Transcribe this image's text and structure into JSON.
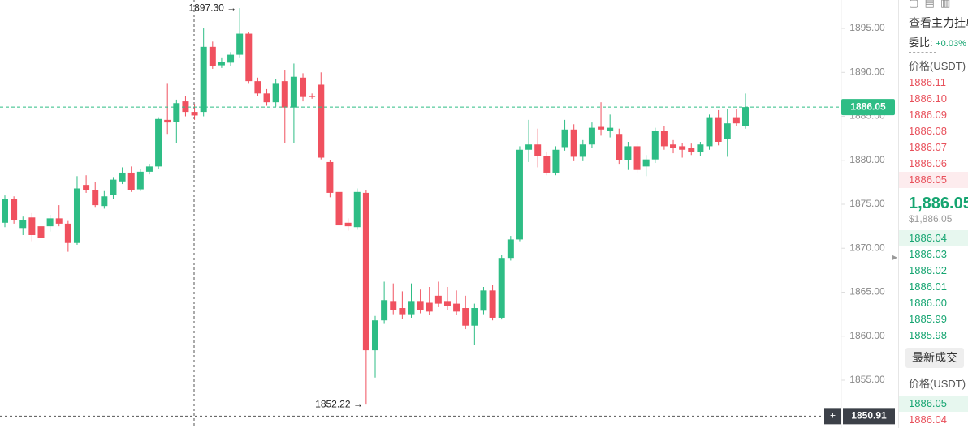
{
  "chart_data": {
    "type": "candlestick",
    "up_color": "#2ebd85",
    "down_color": "#f0515f",
    "ylim": [
      1849.56,
      1898.23
    ],
    "yticks": [
      {
        "value": 1895,
        "label": "1895.00"
      },
      {
        "value": 1890,
        "label": "1890.00"
      },
      {
        "value": 1885,
        "label": "1885.00"
      },
      {
        "value": 1880,
        "label": "1880.00"
      },
      {
        "value": 1875,
        "label": "1875.00"
      },
      {
        "value": 1870,
        "label": "1870.00"
      },
      {
        "value": 1865,
        "label": "1865.00"
      },
      {
        "value": 1860,
        "label": "1860.00"
      },
      {
        "value": 1855,
        "label": "1855.00"
      }
    ],
    "high_marker": {
      "value": 1897.3,
      "label": "1897.30"
    },
    "low_marker": {
      "value": 1852.22,
      "label": "1852.22"
    },
    "last_price": {
      "value": 1886.05,
      "label": "1886.05"
    },
    "crosshair_price": {
      "value": 1850.91,
      "label": "1850.91"
    },
    "candles": [
      [
        1872.9,
        1876.0,
        1872.4,
        1875.6
      ],
      [
        1875.6,
        1875.9,
        1872.8,
        1873.2
      ],
      [
        1872.3,
        1873.6,
        1871.5,
        1873.2
      ],
      [
        1873.5,
        1874.0,
        1870.8,
        1871.5
      ],
      [
        1872.5,
        1872.8,
        1870.9,
        1871.2
      ],
      [
        1872.5,
        1873.8,
        1871.9,
        1873.4
      ],
      [
        1873.4,
        1874.9,
        1872.5,
        1872.8
      ],
      [
        1872.8,
        1873.1,
        1869.6,
        1870.6
      ],
      [
        1870.6,
        1878.2,
        1870.4,
        1876.8
      ],
      [
        1877.2,
        1878.3,
        1876.3,
        1876.6
      ],
      [
        1876.6,
        1877.5,
        1874.7,
        1874.9
      ],
      [
        1874.8,
        1876.5,
        1874.5,
        1875.9
      ],
      [
        1876.1,
        1878.1,
        1875.6,
        1877.8
      ],
      [
        1877.6,
        1879.2,
        1877.3,
        1878.6
      ],
      [
        1878.6,
        1879.3,
        1876.4,
        1876.6
      ],
      [
        1876.7,
        1879.0,
        1876.5,
        1878.7
      ],
      [
        1878.7,
        1879.6,
        1878.4,
        1879.3
      ],
      [
        1879.3,
        1884.9,
        1879.0,
        1884.7
      ],
      [
        1884.6,
        1888.7,
        1883.0,
        1884.3
      ],
      [
        1884.4,
        1886.9,
        1882.0,
        1886.5
      ],
      [
        1886.7,
        1887.3,
        1885.0,
        1885.5
      ],
      [
        1885.5,
        1886.4,
        1884.6,
        1885.1
      ],
      [
        1885.5,
        1895.0,
        1885.0,
        1892.9
      ],
      [
        1892.9,
        1893.5,
        1890.4,
        1890.7
      ],
      [
        1890.8,
        1891.7,
        1890.5,
        1891.2
      ],
      [
        1891.1,
        1892.3,
        1890.7,
        1892.0
      ],
      [
        1892.0,
        1897.3,
        1891.7,
        1894.4
      ],
      [
        1894.4,
        1894.6,
        1888.7,
        1889.0
      ],
      [
        1889.0,
        1889.4,
        1887.3,
        1887.6
      ],
      [
        1887.6,
        1888.1,
        1886.2,
        1886.6
      ],
      [
        1886.6,
        1889.2,
        1886.1,
        1888.7
      ],
      [
        1889.0,
        1890.3,
        1882.0,
        1886.0
      ],
      [
        1886.0,
        1891.0,
        1882.0,
        1889.5
      ],
      [
        1889.4,
        1889.9,
        1886.7,
        1887.2
      ],
      [
        1887.3,
        1887.6,
        1887.0,
        1887.2
      ],
      [
        1888.6,
        1890.0,
        1880.1,
        1880.3
      ],
      [
        1879.8,
        1880.0,
        1875.8,
        1876.3
      ],
      [
        1876.4,
        1877.0,
        1869.0,
        1872.6
      ],
      [
        1872.9,
        1873.4,
        1872.0,
        1872.5
      ],
      [
        1872.4,
        1876.8,
        1872.1,
        1876.4
      ],
      [
        1876.3,
        1876.6,
        1852.22,
        1858.4
      ],
      [
        1858.4,
        1862.3,
        1855.3,
        1861.8
      ],
      [
        1861.8,
        1866.2,
        1861.4,
        1864.1
      ],
      [
        1864.0,
        1866.0,
        1862.5,
        1863.0
      ],
      [
        1863.2,
        1865.1,
        1862.0,
        1862.5
      ],
      [
        1862.5,
        1866.0,
        1862.1,
        1864.0
      ],
      [
        1864.0,
        1865.3,
        1862.6,
        1863.0
      ],
      [
        1863.8,
        1865.6,
        1862.4,
        1862.8
      ],
      [
        1864.6,
        1866.2,
        1863.3,
        1863.7
      ],
      [
        1864.0,
        1865.6,
        1863.0,
        1863.4
      ],
      [
        1863.7,
        1865.2,
        1862.4,
        1862.8
      ],
      [
        1863.2,
        1864.6,
        1860.8,
        1861.2
      ],
      [
        1861.2,
        1863.7,
        1859.0,
        1863.2
      ],
      [
        1862.9,
        1865.6,
        1862.5,
        1865.2
      ],
      [
        1865.2,
        1865.8,
        1861.8,
        1862.1
      ],
      [
        1862.1,
        1869.2,
        1861.9,
        1868.9
      ],
      [
        1868.9,
        1871.4,
        1868.6,
        1871.0
      ],
      [
        1871.0,
        1881.6,
        1870.8,
        1881.2
      ],
      [
        1881.2,
        1884.6,
        1879.8,
        1881.8
      ],
      [
        1881.8,
        1883.6,
        1879.2,
        1880.5
      ],
      [
        1880.5,
        1881.0,
        1878.3,
        1878.6
      ],
      [
        1878.6,
        1881.6,
        1878.3,
        1881.2
      ],
      [
        1881.5,
        1884.6,
        1881.1,
        1883.5
      ],
      [
        1883.5,
        1884.1,
        1879.9,
        1880.4
      ],
      [
        1880.4,
        1882.3,
        1879.9,
        1881.8
      ],
      [
        1881.8,
        1884.3,
        1881.4,
        1883.7
      ],
      [
        1883.8,
        1886.6,
        1882.8,
        1883.5
      ],
      [
        1883.3,
        1885.2,
        1882.6,
        1883.7
      ],
      [
        1883.0,
        1883.6,
        1879.6,
        1880.0
      ],
      [
        1880.0,
        1882.1,
        1878.9,
        1881.6
      ],
      [
        1881.6,
        1882.0,
        1878.5,
        1878.9
      ],
      [
        1879.3,
        1880.6,
        1878.2,
        1880.1
      ],
      [
        1880.1,
        1883.7,
        1879.7,
        1883.3
      ],
      [
        1883.3,
        1883.9,
        1881.2,
        1881.6
      ],
      [
        1881.8,
        1882.3,
        1880.8,
        1881.4
      ],
      [
        1881.6,
        1882.0,
        1880.3,
        1881.2
      ],
      [
        1881.4,
        1881.9,
        1880.6,
        1880.9
      ],
      [
        1880.9,
        1882.1,
        1880.5,
        1881.8
      ],
      [
        1881.6,
        1885.2,
        1881.2,
        1884.9
      ],
      [
        1884.9,
        1885.7,
        1881.7,
        1882.1
      ],
      [
        1882.4,
        1885.8,
        1880.4,
        1884.2
      ],
      [
        1884.9,
        1885.8,
        1883.9,
        1884.2
      ],
      [
        1883.9,
        1887.6,
        1883.6,
        1886.05
      ]
    ]
  },
  "order_book": {
    "title": "查看主力挂单",
    "ratio_label": "委比:",
    "ratio_value": "+0.03%",
    "price_header": "价格(USDT)",
    "asks": [
      "1886.11",
      "1886.10",
      "1886.09",
      "1886.08",
      "1886.07",
      "1886.06",
      "1886.05"
    ],
    "last": "1,886.05",
    "last_usd": "$1,886.05",
    "bids": [
      "1886.04",
      "1886.03",
      "1886.02",
      "1886.01",
      "1886.00",
      "1885.99",
      "1885.98"
    ],
    "trades_button": "最新成交",
    "trades_header": "价格(USDT)",
    "trades": [
      "1886.05",
      "1886.04"
    ]
  }
}
